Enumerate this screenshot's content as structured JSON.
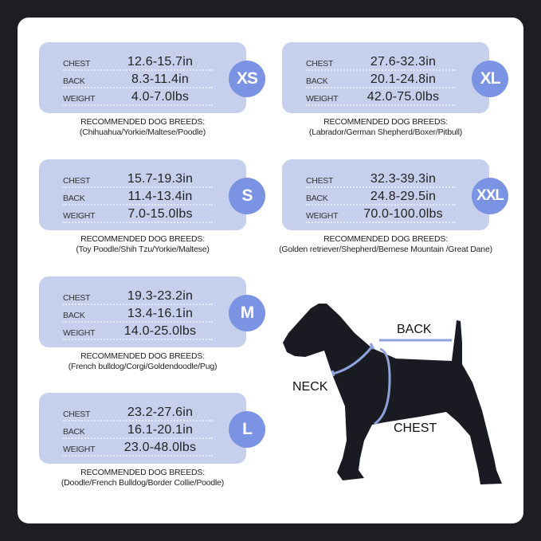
{
  "row_labels": {
    "chest": "CHEST",
    "back": "BACK",
    "weight": "WEIGHT"
  },
  "breeds_heading": "RECOMMENDED DOG BREEDS:",
  "sizes": [
    {
      "size": "XS",
      "chest": "12.6-15.7in",
      "back": "8.3-11.4in",
      "weight": "4.0-7.0lbs",
      "breeds": "(Chihuahua/Yorkie/Maltese/Poodle)"
    },
    {
      "size": "S",
      "chest": "15.7-19.3in",
      "back": "11.4-13.4in",
      "weight": "7.0-15.0lbs",
      "breeds": "(Toy Poodle/Shih Tzu/Yorkie/Maltese)"
    },
    {
      "size": "M",
      "chest": "19.3-23.2in",
      "back": "13.4-16.1in",
      "weight": "14.0-25.0lbs",
      "breeds": "(French bulldog/Corgi/Goldendoodle/Pug)"
    },
    {
      "size": "L",
      "chest": "23.2-27.6in",
      "back": "16.1-20.1in",
      "weight": "23.0-48.0lbs",
      "breeds": "(Doodle/French Bulldog/Border Collie/Poodle)"
    },
    {
      "size": "XL",
      "chest": "27.6-32.3in",
      "back": "20.1-24.8in",
      "weight": "42.0-75.0lbs",
      "breeds": "(Labrador/German Shepherd/Boxer/Pitbull)"
    },
    {
      "size": "XXL",
      "chest": "32.3-39.3in",
      "back": "24.8-29.5in",
      "weight": "70.0-100.0lbs",
      "breeds": "(Golden retriever/Shepherd/Bernese Mountain /Great Dane)"
    }
  ],
  "diagram": {
    "back": "BACK",
    "neck": "NECK",
    "chest": "CHEST"
  },
  "colors": {
    "card": "#c6cfec",
    "badge": "#7a93e2",
    "harness": "#8ea2dc",
    "background": "#1e1e22"
  }
}
